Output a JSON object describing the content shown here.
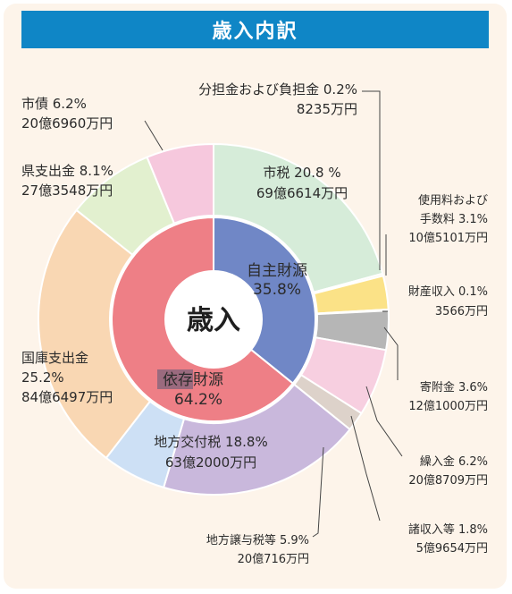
{
  "title": "歳入内訳",
  "center_label": "歳入",
  "inner_labels": [
    {
      "name": "自主財源",
      "pct": "35.8%"
    },
    {
      "name": "依存財源",
      "pct": "64.2%"
    }
  ],
  "labels": [
    {
      "lines": [
        "市税 20.8 %",
        "69億6614万円"
      ]
    },
    {
      "lines": [
        "分担金および負担金 0.2%",
        "8235万円"
      ]
    },
    {
      "lines": [
        "使用料および",
        "手数料 3.1%",
        "10億5101万円"
      ]
    },
    {
      "lines": [
        "財産収入 0.1%",
        "3566万円"
      ]
    },
    {
      "lines": [
        "寄附金 3.6%",
        "12億1000万円"
      ]
    },
    {
      "lines": [
        "繰入金 6.2%",
        "20億8709万円"
      ]
    },
    {
      "lines": [
        "諸収入等 1.8%",
        "5億9654万円"
      ]
    },
    {
      "lines": [
        "地方交付税 18.8%",
        "63億2000万円"
      ]
    },
    {
      "lines": [
        "地方譲与税等 5.9%",
        "20億716万円"
      ]
    },
    {
      "lines": [
        "国庫支出金",
        "25.2%",
        "84億6497万円"
      ]
    },
    {
      "lines": [
        "県支出金 8.1%",
        "27億3548万円"
      ]
    },
    {
      "lines": [
        "市債 6.2%",
        "20億6960万円"
      ]
    }
  ],
  "chart_data": {
    "type": "pie",
    "inner_ring": {
      "categories": [
        "自主財源",
        "依存財源"
      ],
      "values": [
        35.8,
        64.2
      ],
      "colors": [
        "#7087c6",
        "#ee7f86"
      ]
    },
    "outer_ring": {
      "categories": [
        "市税",
        "分担金および負担金",
        "使用料および手数料",
        "財産収入",
        "寄附金",
        "繰入金",
        "諸収入等",
        "地方交付税",
        "地方譲与税等",
        "国庫支出金",
        "県支出金",
        "市債"
      ],
      "values": [
        20.8,
        0.2,
        3.1,
        0.1,
        3.6,
        6.2,
        1.8,
        18.8,
        5.9,
        25.2,
        8.1,
        6.2
      ],
      "amounts": [
        "69億6614万円",
        "8235万円",
        "10億5101万円",
        "3566万円",
        "12億1000万円",
        "20億8709万円",
        "5億9654万円",
        "63億2000万円",
        "20億716万円",
        "84億6497万円",
        "27億3548万円",
        "20億6960万円"
      ],
      "colors": [
        "#d6ecd9",
        "#f3efcb",
        "#fbe287",
        "#d8d8d8",
        "#b6b6b6",
        "#f7cfe0",
        "#ddd2ca",
        "#c9b8dc",
        "#cde0f5",
        "#f9d7b3",
        "#e2f0cf",
        "#f6c8dd"
      ]
    }
  }
}
